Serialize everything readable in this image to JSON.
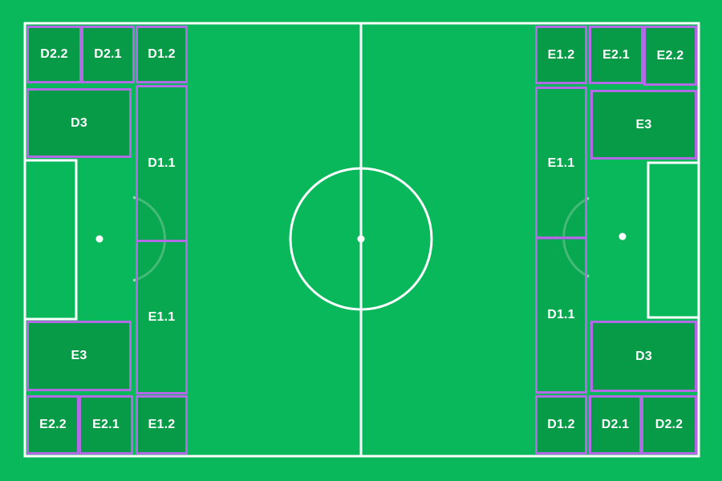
{
  "pitch": {
    "grass_color": "#08b85a",
    "line_color": "#ffffff",
    "zone_fill": "#079a47",
    "zone_border": "#b46ae6"
  },
  "zones": {
    "left": {
      "d2_2": "D2.2",
      "d2_1": "D2.1",
      "d1_2": "D1.2",
      "d3": "D3",
      "d1_1": "D1.1",
      "e1_1": "E1.1",
      "e3": "E3",
      "e2_2": "E2.2",
      "e2_1": "E2.1",
      "e1_2": "E1.2"
    },
    "right": {
      "e1_2": "E1.2",
      "e2_1": "E2.1",
      "e2_2": "E2.2",
      "e3": "E3",
      "e1_1": "E1.1",
      "d1_1": "D1.1",
      "d3": "D3",
      "d1_2": "D1.2",
      "d2_1": "D2.1",
      "d2_2": "D2.2"
    }
  }
}
